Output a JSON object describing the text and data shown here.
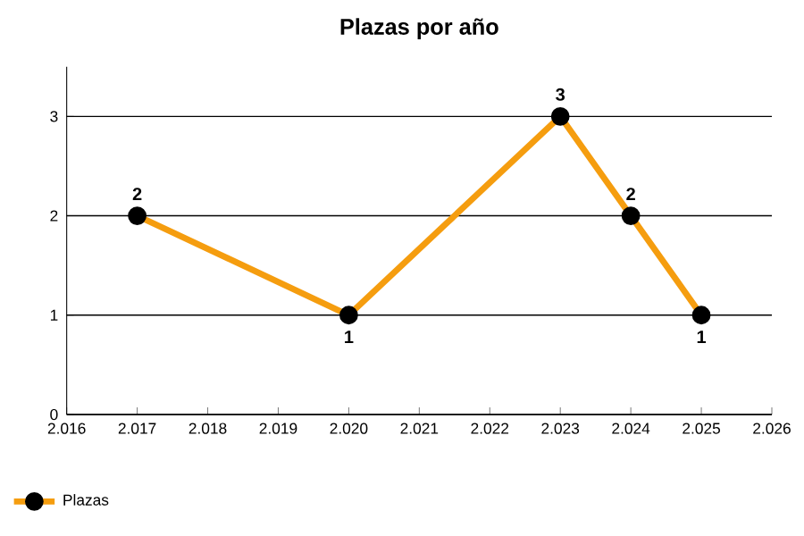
{
  "chart_data": {
    "type": "line",
    "title": "Plazas por año",
    "x": [
      2017,
      2020,
      2023,
      2024,
      2025
    ],
    "series": [
      {
        "name": "Plazas",
        "color": "#f59d0f",
        "values": [
          2,
          1,
          3,
          2,
          1
        ]
      }
    ],
    "xlim": [
      2016,
      2026
    ],
    "xticks": [
      {
        "value": 2016,
        "label": "2.016"
      },
      {
        "value": 2017,
        "label": "2.017"
      },
      {
        "value": 2018,
        "label": "2.018"
      },
      {
        "value": 2019,
        "label": "2.019"
      },
      {
        "value": 2020,
        "label": "2.020"
      },
      {
        "value": 2021,
        "label": "2.021"
      },
      {
        "value": 2022,
        "label": "2.022"
      },
      {
        "value": 2023,
        "label": "2.023"
      },
      {
        "value": 2024,
        "label": "2.024"
      },
      {
        "value": 2025,
        "label": "2.025"
      },
      {
        "value": 2026,
        "label": "2.026"
      }
    ],
    "ylim": [
      0,
      3.5
    ],
    "yticks": [
      0,
      1,
      2,
      3
    ],
    "grid": "y",
    "legend": "bottom left",
    "marker": "circle",
    "line_style": "solid",
    "data_labels": true
  }
}
